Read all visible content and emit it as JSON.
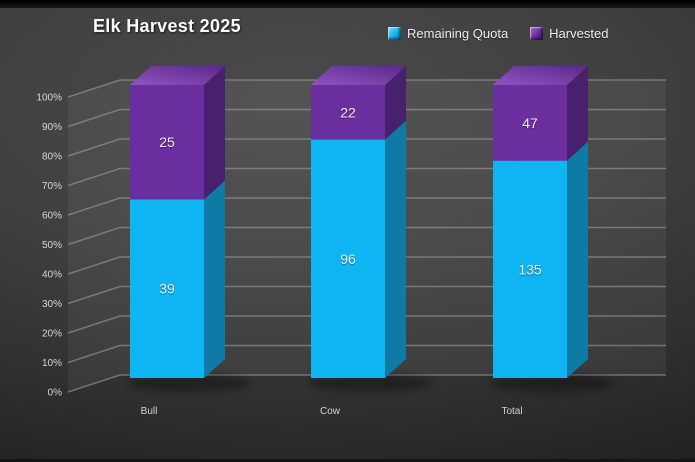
{
  "chart_data": {
    "type": "bar",
    "subtype": "3d-100pct-stacked-column",
    "title": "Elk Harvest 2025",
    "categories": [
      "Bull",
      "Cow",
      "Total"
    ],
    "series": [
      {
        "name": "Remaining Quota",
        "values": [
          39,
          96,
          135
        ],
        "colors": {
          "front": "#0fb4f2",
          "side": "#0e7ba6",
          "top_light": "#55cef8",
          "top_dark": "#0e9cd8",
          "chip_light": "#7bdcfb",
          "chip_dark": "#0879a6"
        }
      },
      {
        "name": "Harvested",
        "values": [
          25,
          22,
          47
        ],
        "colors": {
          "front": "#6b2e9e",
          "side": "#47206e",
          "top_light": "#9055c2",
          "top_dark": "#5e2688",
          "chip_light": "#a06cd0",
          "chip_dark": "#3f1c63"
        }
      }
    ],
    "y_axis": {
      "min": 0,
      "max": 100,
      "tick_labels": [
        "0%",
        "10%",
        "20%",
        "30%",
        "40%",
        "50%",
        "60%",
        "70%",
        "80%",
        "90%",
        "100%"
      ],
      "tick_values": [
        0,
        10,
        20,
        30,
        40,
        50,
        60,
        70,
        80,
        90,
        100
      ]
    },
    "legend_position": "top-right",
    "grid": true,
    "gridline_color": "#9a9a9a",
    "data_label_color": "#efefef"
  }
}
